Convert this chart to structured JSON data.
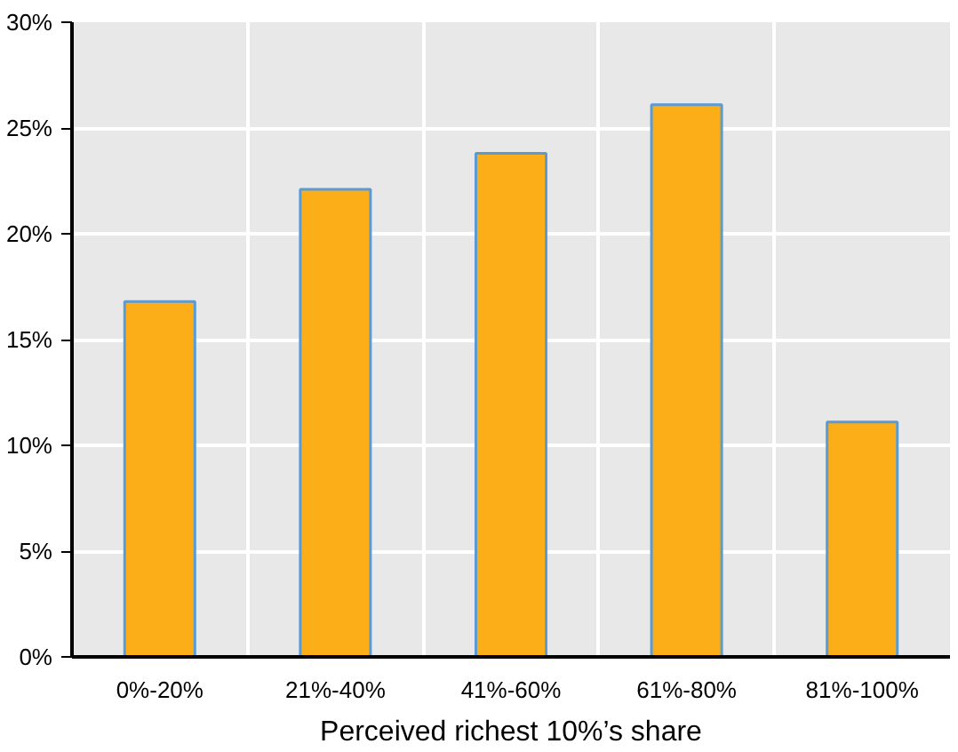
{
  "chart_data": {
    "type": "bar",
    "xlabel": "Perceived richest 10%’s share",
    "categories": [
      "0%-20%",
      "21%-40%",
      "41%-60%",
      "61%-80%",
      "81%-100%"
    ],
    "series": [
      {
        "color": "#fbae17",
        "values": [
          16.8,
          22.1,
          23.8,
          26.1,
          11.1
        ]
      }
    ],
    "ylim": [
      0,
      30
    ],
    "yticks": [
      {
        "value": 0,
        "label": "0%"
      },
      {
        "value": 5,
        "label": "5%"
      },
      {
        "value": 10,
        "label": "10%"
      },
      {
        "value": 15,
        "label": "15%"
      },
      {
        "value": 20,
        "label": "20%"
      },
      {
        "value": 25,
        "label": "25%"
      },
      {
        "value": 30,
        "label": "30%"
      }
    ],
    "grid": true
  }
}
